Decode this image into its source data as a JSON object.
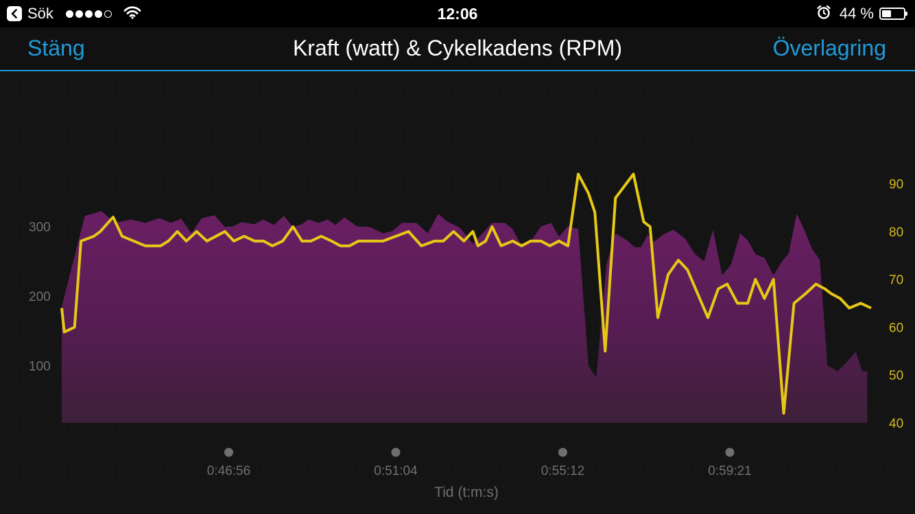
{
  "status_bar": {
    "carrier": "Sök",
    "signal_bars_filled": 4,
    "signal_bars_total": 5,
    "time": "12:06",
    "battery_percent": "44 %",
    "battery_level": 0.44
  },
  "nav": {
    "close_label": "Stäng",
    "title": "Kraft (watt) & Cykelkadens (RPM)",
    "overlay_label": "Överlagring",
    "accent_color": "#1f9bd8"
  },
  "chart_data": {
    "type": "area",
    "title": "Kraft (watt) & Cykelkadens (RPM)",
    "xlabel": "Tid (t:m:s)",
    "x_ticks": [
      "0:46:56",
      "0:51:04",
      "0:55:12",
      "0:59:21"
    ],
    "y_left": {
      "ticks": [
        100,
        200,
        300
      ],
      "range": [
        18,
        382
      ]
    },
    "y_right": {
      "ticks": [
        40,
        50,
        60,
        70,
        80,
        90
      ],
      "range": [
        40,
        93
      ]
    },
    "grid": false,
    "series": [
      {
        "axis": "left",
        "type": "area",
        "color": "#7a2470",
        "x": [
          0,
          1.8,
          3.1,
          4.1,
          5.4,
          6.5,
          7.6,
          8.5,
          9.3,
          10.1,
          10.9,
          11.9,
          12.7,
          13.3,
          14,
          15,
          15.7,
          16.5,
          17.3,
          18,
          18.7,
          19.2,
          20,
          20.7,
          21.3,
          22,
          23,
          24,
          25,
          25.7,
          26.5,
          27.6,
          28.5,
          29.3,
          30,
          31,
          32,
          33.5,
          34.5,
          35.1,
          35.7,
          36.5,
          37.3,
          38.1,
          38.7,
          39.4,
          40.2,
          41,
          41.6,
          42.4,
          43.1,
          44,
          44.6,
          45.1,
          45.6,
          46.1,
          46.8,
          47.6,
          48.5,
          49.3,
          50,
          50.7,
          51.4,
          52.1,
          52.8,
          53.4,
          54,
          54.7,
          55.4,
          56,
          56.6,
          57.2,
          57.8,
          58.4,
          59,
          59.6,
          60.4,
          61.1,
          61.8,
          62.3,
          62.7
        ],
        "values": [
          185,
          315,
          322,
          305,
          310,
          305,
          312,
          305,
          311,
          290,
          312,
          316,
          299,
          300,
          306,
          303,
          310,
          302,
          315,
          299,
          303,
          310,
          305,
          310,
          302,
          313,
          300,
          299,
          290,
          293,
          305,
          305,
          290,
          318,
          307,
          298,
          275,
          305,
          305,
          296,
          275,
          278,
          300,
          305,
          285,
          300,
          296,
          100,
          83,
          245,
          290,
          280,
          270,
          270,
          288,
          278,
          288,
          295,
          283,
          260,
          250,
          295,
          230,
          245,
          290,
          280,
          260,
          255,
          230,
          248,
          262,
          318,
          295,
          268,
          252,
          100,
          92,
          105,
          120,
          92,
          92
        ]
      },
      {
        "axis": "right",
        "type": "line",
        "color": "#e6c817",
        "x": [
          0,
          0.2,
          1,
          1.5,
          2.5,
          3,
          4,
          4.7,
          5.6,
          6.5,
          7.7,
          8.3,
          9,
          9.7,
          10.5,
          11.3,
          12,
          12.7,
          13.4,
          14.2,
          15,
          15.7,
          16.4,
          17.2,
          18,
          18.7,
          19.4,
          20.2,
          21,
          21.7,
          22.4,
          23.1,
          24,
          25,
          26,
          27,
          28,
          29,
          29.7,
          30.5,
          31.3,
          32,
          32.4,
          33,
          33.5,
          34.2,
          35.1,
          35.8,
          36.5,
          37.3,
          38,
          38.7,
          39.4,
          40.2,
          41,
          41.5,
          42.3,
          43.1,
          44.5,
          45.3,
          45.8,
          46.4,
          47.2,
          48,
          48.7,
          49.5,
          50.3,
          51.1,
          51.8,
          52.6,
          53.4,
          54,
          54.7,
          55.4,
          56.2,
          57,
          57.9,
          58.7,
          59.4,
          59.9,
          60.6,
          61.3,
          62.2,
          63
        ],
        "values": [
          64,
          59,
          60,
          78,
          79,
          80,
          83,
          79,
          78,
          77,
          77,
          78,
          80,
          78,
          80,
          78,
          79,
          80,
          78,
          79,
          78,
          78,
          77,
          78,
          81,
          78,
          78,
          79,
          78,
          77,
          77,
          78,
          78,
          78,
          79,
          80,
          77,
          78,
          78,
          80,
          78,
          80,
          77,
          78,
          81,
          77,
          78,
          77,
          78,
          78,
          77,
          78,
          77,
          92,
          88,
          84,
          55,
          87,
          92,
          82,
          81,
          62,
          71,
          74,
          72,
          67,
          62,
          68,
          69,
          65,
          65,
          70,
          66,
          70,
          42,
          65,
          67,
          69,
          68,
          67,
          66,
          64,
          65,
          64
        ]
      }
    ]
  }
}
